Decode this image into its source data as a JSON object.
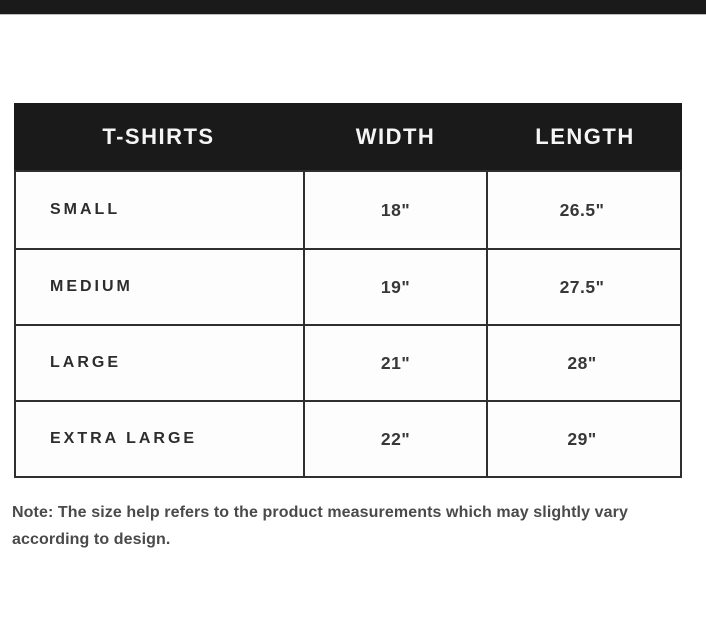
{
  "page": {
    "background_color": "#ffffff",
    "top_bar_color": "#1a1a1a"
  },
  "size_chart": {
    "header_bg_color": "#1a1a1a",
    "header_text_color": "#f5f5f5",
    "border_color": "#2f2f2f",
    "headers": [
      "T-SHIRTS",
      "WIDTH",
      "LENGTH"
    ],
    "rows": [
      {
        "size": "SMALL",
        "width": "18\"",
        "length": "26.5\""
      },
      {
        "size": "MEDIUM",
        "width": "19\"",
        "length": "27.5\""
      },
      {
        "size": "LARGE",
        "width": "21\"",
        "length": "28\""
      },
      {
        "size": "EXTRA LARGE",
        "width": "22\"",
        "length": "29\""
      }
    ]
  },
  "note": {
    "text": "Note: The size help refers to the product measurements which may slightly vary according to design."
  }
}
